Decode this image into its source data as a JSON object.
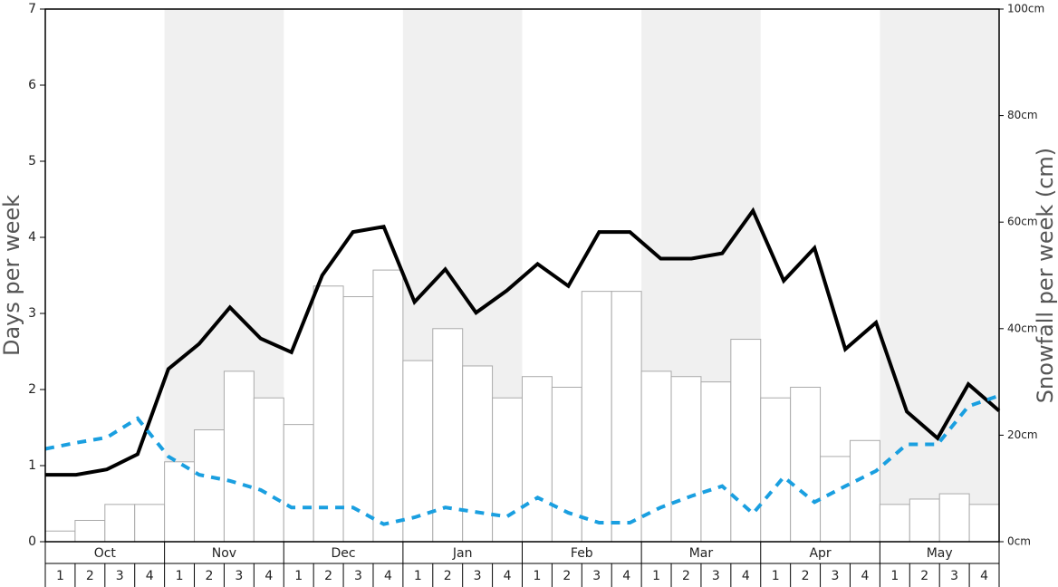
{
  "chart_data": {
    "type": "bar",
    "y_label": "Days per week",
    "y2_label": "Snowfall per week (cm)",
    "months": [
      "Oct",
      "Nov",
      "Dec",
      "Jan",
      "Feb",
      "Mar",
      "Apr",
      "May"
    ],
    "weeks": [
      1,
      2,
      3,
      4
    ],
    "ylim": [
      0,
      7
    ],
    "yticks": [
      0,
      1,
      2,
      3,
      4,
      5,
      6,
      7
    ],
    "y2lim": [
      0,
      100
    ],
    "y2ticks": [
      {
        "value": 0,
        "label": "0cm"
      },
      {
        "value": 20,
        "label": "20cm"
      },
      {
        "value": 40,
        "label": "40cm"
      },
      {
        "value": 60,
        "label": "60cm"
      },
      {
        "value": 80,
        "label": "80cm"
      },
      {
        "value": 100,
        "label": "100cm"
      }
    ],
    "shade_color": "#f0f0f0",
    "series": [
      {
        "type": "bar",
        "axis": "y2",
        "color": "#ffffff",
        "edge_color": "#aaaaaa",
        "values": [
          2,
          4,
          7,
          7,
          15,
          21,
          32,
          27,
          22,
          48,
          46,
          51,
          34,
          40,
          33,
          27,
          31,
          29,
          47,
          47,
          32,
          31,
          30,
          38,
          27,
          29,
          16,
          19,
          7,
          8,
          9,
          7
        ]
      },
      {
        "type": "line",
        "color": "#000000",
        "dashed": false,
        "values": [
          0.88,
          0.88,
          0.95,
          1.15,
          2.27,
          2.6,
          3.08,
          2.67,
          2.49,
          3.5,
          4.07,
          4.14,
          3.15,
          3.58,
          3.01,
          3.3,
          3.65,
          3.36,
          4.07,
          4.07,
          3.72,
          3.72,
          3.79,
          4.35,
          3.43,
          3.86,
          2.53,
          2.88,
          1.71,
          1.36,
          2.07,
          1.72
        ]
      },
      {
        "type": "line",
        "color": "#1a9fe0",
        "dashed": true,
        "values": [
          1.22,
          1.3,
          1.37,
          1.62,
          1.12,
          0.88,
          0.8,
          0.68,
          0.45,
          0.45,
          0.45,
          0.23,
          0.32,
          0.45,
          0.39,
          0.33,
          0.58,
          0.38,
          0.25,
          0.25,
          0.45,
          0.6,
          0.73,
          0.37,
          0.85,
          0.52,
          0.73,
          0.93,
          1.28,
          1.28,
          1.78,
          1.92
        ]
      }
    ]
  }
}
